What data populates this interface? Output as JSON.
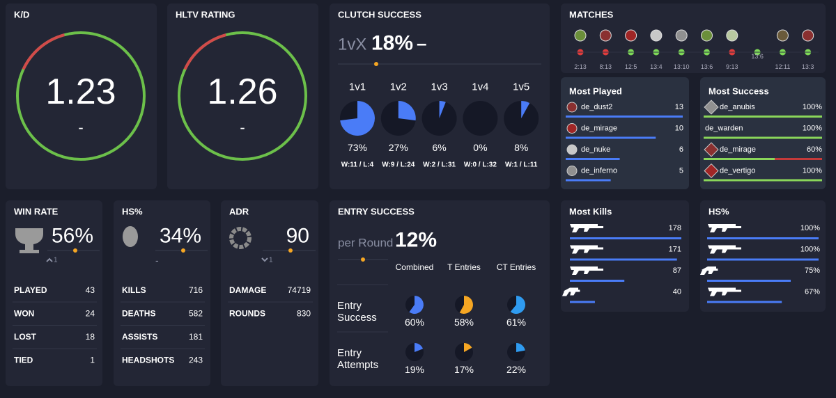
{
  "kd": {
    "title": "K/D",
    "value": "1.23",
    "change": "-"
  },
  "hltv": {
    "title": "HLTV RATING",
    "value": "1.26",
    "change": "-"
  },
  "clutch": {
    "title": "CLUTCH SUCCESS",
    "prefix": "1vX",
    "value": "18%",
    "change": "–",
    "items": [
      {
        "label": "1v1",
        "success": {
          "value": 73,
          "label": "73%"
        },
        "record": "W:11 / L:4"
      },
      {
        "label": "1v2",
        "success": {
          "value": 27,
          "label": "27%"
        },
        "record": "W:9 / L:24"
      },
      {
        "label": "1v3",
        "success": {
          "value": 6,
          "label": "6%"
        },
        "record": "W:2 / L:31"
      },
      {
        "label": "1v4",
        "success": {
          "value": 0,
          "label": "0%"
        },
        "record": "W:0 / L:32"
      },
      {
        "label": "1v5",
        "success": {
          "value": 8,
          "label": "8%"
        },
        "record": "W:1 / L:11"
      }
    ]
  },
  "matches": {
    "title": "MATCHES",
    "games": [
      {
        "score": "2:13",
        "color": "#e03c3c"
      },
      {
        "score": "8:13",
        "color": "#e03c3c"
      },
      {
        "score": "12:5",
        "color": "#7ed957"
      },
      {
        "score": "13:4",
        "color": "#7ed957"
      },
      {
        "score": "13:10",
        "color": "#7ed957"
      },
      {
        "score": "13:6",
        "color": "#7ed957"
      },
      {
        "score": "9:13",
        "color": "#e03c3c"
      },
      {
        "score": "13:6",
        "color": "#7ed957"
      },
      {
        "score": "12:11",
        "color": "#7ed957"
      },
      {
        "score": "13:3",
        "color": "#7ed957"
      }
    ]
  },
  "most_played": {
    "title": "Most Played",
    "rows": [
      {
        "map": "de_dust2",
        "count": 13
      },
      {
        "map": "de_mirage",
        "count": 10
      },
      {
        "map": "de_nuke",
        "count": 6
      },
      {
        "map": "de_inferno",
        "count": 5
      }
    ]
  },
  "most_success": {
    "title": "Most Success",
    "rows": [
      {
        "map": "de_anubis",
        "rate": {
          "value": 100,
          "label": "100%"
        }
      },
      {
        "map": "de_warden",
        "rate": {
          "value": 100,
          "label": "100%"
        }
      },
      {
        "map": "de_mirage",
        "rate": {
          "value": 60,
          "label": "60%"
        }
      },
      {
        "map": "de_vertigo",
        "rate": {
          "value": 100,
          "label": "100%"
        }
      }
    ]
  },
  "win_rate": {
    "title": "WIN RATE",
    "value": "56%",
    "change": "1",
    "stats": [
      {
        "label": "PLAYED",
        "value": 43
      },
      {
        "label": "WON",
        "value": 24
      },
      {
        "label": "LOST",
        "value": 18
      },
      {
        "label": "TIED",
        "value": 1
      }
    ]
  },
  "hs": {
    "title": "HS%",
    "value": "34%",
    "change": "-",
    "stats": [
      {
        "label": "KILLS",
        "value": 716
      },
      {
        "label": "DEATHS",
        "value": 582
      },
      {
        "label": "ASSISTS",
        "value": 181
      },
      {
        "label": "HEADSHOTS",
        "value": 243
      }
    ]
  },
  "adr": {
    "title": "ADR",
    "value": "90",
    "change": "1",
    "stats": [
      {
        "label": "DAMAGE",
        "value": 74719
      },
      {
        "label": "ROUNDS",
        "value": 830
      }
    ]
  },
  "entry": {
    "title": "ENTRY SUCCESS",
    "prefix": "per Round",
    "value": "12%",
    "columns": [
      "Combined",
      "T Entries",
      "CT Entries"
    ],
    "colors": [
      "#4a7cf7",
      "#f5a623",
      "#2f9bf0"
    ],
    "rows": [
      {
        "label": "Entry Success",
        "cells": [
          {
            "value": 60,
            "label": "60%"
          },
          {
            "value": 58,
            "label": "58%"
          },
          {
            "value": 61,
            "label": "61%"
          }
        ]
      },
      {
        "label": "Entry Attempts",
        "cells": [
          {
            "value": 19,
            "label": "19%"
          },
          {
            "value": 17,
            "label": "17%"
          },
          {
            "value": 22,
            "label": "22%"
          }
        ]
      }
    ]
  },
  "most_kills": {
    "title": "Most Kills",
    "values": [
      178,
      171,
      87,
      40
    ]
  },
  "weapon_hs": {
    "title": "HS%",
    "values": [
      {
        "value": 100,
        "label": "100%"
      },
      {
        "value": 100,
        "label": "100%"
      },
      {
        "value": 75,
        "label": "75%"
      },
      {
        "value": 67,
        "label": "67%"
      }
    ]
  }
}
